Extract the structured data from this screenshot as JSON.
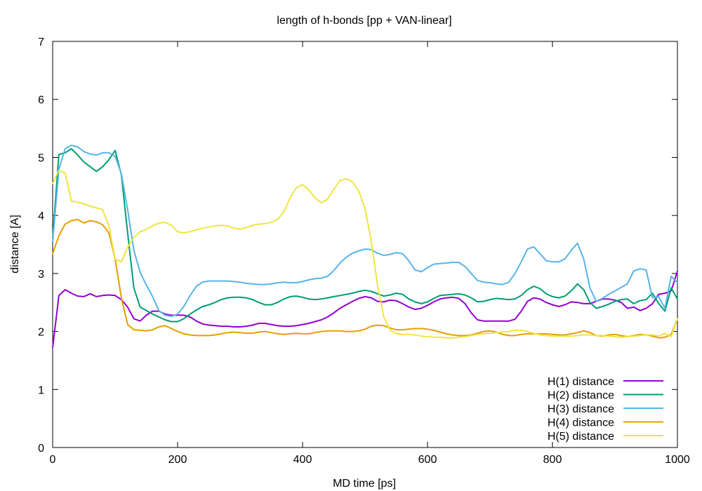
{
  "chart_data": {
    "type": "line",
    "title": "length of h-bonds [pp + VAN-linear]",
    "xlabel": "MD time [ps]",
    "ylabel": "distance [A]",
    "xlim": [
      0,
      1000
    ],
    "ylim": [
      0,
      7
    ],
    "xticks": [
      "0",
      "200",
      "400",
      "600",
      "800",
      "1000"
    ],
    "yticks": [
      "0",
      "1",
      "2",
      "3",
      "4",
      "5",
      "6",
      "7"
    ],
    "grid": false,
    "legend_position": "bottom-right",
    "x": [
      0,
      10,
      20,
      30,
      40,
      50,
      60,
      70,
      80,
      90,
      100,
      110,
      120,
      130,
      140,
      150,
      160,
      170,
      180,
      190,
      200,
      210,
      220,
      230,
      240,
      250,
      260,
      270,
      280,
      290,
      300,
      310,
      320,
      330,
      340,
      350,
      360,
      370,
      380,
      390,
      400,
      410,
      420,
      430,
      440,
      450,
      460,
      470,
      480,
      490,
      500,
      510,
      520,
      530,
      540,
      550,
      560,
      570,
      580,
      590,
      600,
      610,
      620,
      630,
      640,
      650,
      660,
      670,
      680,
      690,
      700,
      710,
      720,
      730,
      740,
      750,
      760,
      770,
      780,
      790,
      800,
      810,
      820,
      830,
      840,
      850,
      860,
      870,
      880,
      890,
      900,
      910,
      920,
      930,
      940,
      950,
      960,
      970,
      980,
      990,
      1000
    ],
    "series": [
      {
        "name": "H(1) distance",
        "color": "#9400d3",
        "values": [
          1.72,
          2.62,
          2.72,
          2.66,
          2.61,
          2.6,
          2.65,
          2.6,
          2.62,
          2.63,
          2.62,
          2.55,
          2.42,
          2.22,
          2.18,
          2.28,
          2.35,
          2.35,
          2.3,
          2.28,
          2.28,
          2.28,
          2.25,
          2.18,
          2.13,
          2.11,
          2.1,
          2.09,
          2.09,
          2.08,
          2.08,
          2.09,
          2.11,
          2.14,
          2.14,
          2.12,
          2.1,
          2.09,
          2.09,
          2.1,
          2.12,
          2.14,
          2.17,
          2.2,
          2.25,
          2.32,
          2.4,
          2.46,
          2.52,
          2.57,
          2.6,
          2.58,
          2.52,
          2.51,
          2.54,
          2.53,
          2.48,
          2.42,
          2.38,
          2.4,
          2.45,
          2.51,
          2.56,
          2.58,
          2.59,
          2.57,
          2.48,
          2.32,
          2.2,
          2.18,
          2.18,
          2.18,
          2.18,
          2.18,
          2.21,
          2.35,
          2.52,
          2.58,
          2.56,
          2.5,
          2.46,
          2.43,
          2.46,
          2.51,
          2.5,
          2.48,
          2.48,
          2.52,
          2.56,
          2.56,
          2.54,
          2.5,
          2.4,
          2.42,
          2.36,
          2.4,
          2.48,
          2.64,
          2.66,
          2.7,
          3.04
        ]
      },
      {
        "name": "H(2) distance",
        "color": "#009e73",
        "values": [
          3.6,
          5.05,
          5.08,
          5.15,
          5.04,
          4.92,
          4.84,
          4.76,
          4.84,
          4.96,
          5.12,
          4.7,
          3.7,
          2.75,
          2.42,
          2.36,
          2.3,
          2.25,
          2.2,
          2.17,
          2.17,
          2.22,
          2.3,
          2.37,
          2.43,
          2.46,
          2.5,
          2.55,
          2.58,
          2.59,
          2.59,
          2.58,
          2.55,
          2.5,
          2.46,
          2.46,
          2.5,
          2.56,
          2.6,
          2.61,
          2.59,
          2.56,
          2.55,
          2.56,
          2.58,
          2.6,
          2.62,
          2.64,
          2.66,
          2.69,
          2.71,
          2.69,
          2.65,
          2.61,
          2.63,
          2.66,
          2.64,
          2.56,
          2.51,
          2.48,
          2.51,
          2.57,
          2.62,
          2.63,
          2.64,
          2.65,
          2.63,
          2.58,
          2.51,
          2.52,
          2.55,
          2.57,
          2.56,
          2.55,
          2.56,
          2.62,
          2.72,
          2.78,
          2.74,
          2.65,
          2.6,
          2.58,
          2.61,
          2.7,
          2.82,
          2.72,
          2.5,
          2.4,
          2.43,
          2.47,
          2.52,
          2.55,
          2.56,
          2.48,
          2.53,
          2.55,
          2.66,
          2.48,
          2.35,
          2.75,
          2.56
        ]
      },
      {
        "name": "H(3) distance",
        "color": "#56b4e9",
        "values": [
          3.55,
          4.8,
          5.15,
          5.21,
          5.18,
          5.1,
          5.06,
          5.04,
          5.08,
          5.08,
          5.02,
          4.72,
          4.1,
          3.4,
          3.02,
          2.8,
          2.6,
          2.36,
          2.28,
          2.26,
          2.3,
          2.43,
          2.62,
          2.78,
          2.85,
          2.87,
          2.87,
          2.87,
          2.87,
          2.86,
          2.85,
          2.83,
          2.82,
          2.81,
          2.81,
          2.82,
          2.84,
          2.85,
          2.84,
          2.84,
          2.86,
          2.89,
          2.91,
          2.92,
          2.95,
          3.05,
          3.18,
          3.28,
          3.35,
          3.39,
          3.42,
          3.41,
          3.35,
          3.31,
          3.33,
          3.36,
          3.34,
          3.22,
          3.06,
          3.03,
          3.1,
          3.16,
          3.17,
          3.18,
          3.19,
          3.19,
          3.12,
          3.0,
          2.88,
          2.85,
          2.84,
          2.82,
          2.81,
          2.85,
          3.0,
          3.2,
          3.42,
          3.46,
          3.34,
          3.22,
          3.2,
          3.2,
          3.25,
          3.4,
          3.52,
          3.25,
          2.75,
          2.52,
          2.57,
          2.64,
          2.7,
          2.76,
          2.82,
          3.04,
          3.08,
          3.06,
          2.58,
          2.6,
          2.4,
          2.95,
          2.84
        ]
      },
      {
        "name": "H(4) distance",
        "color": "#e69f00",
        "values": [
          3.34,
          3.65,
          3.85,
          3.91,
          3.93,
          3.87,
          3.91,
          3.89,
          3.84,
          3.7,
          3.25,
          2.58,
          2.12,
          2.03,
          2.02,
          2.01,
          2.03,
          2.08,
          2.1,
          2.05,
          2.0,
          1.96,
          1.94,
          1.93,
          1.93,
          1.93,
          1.94,
          1.96,
          1.98,
          1.99,
          1.98,
          1.97,
          1.97,
          1.99,
          2.0,
          1.98,
          1.96,
          1.95,
          1.96,
          1.97,
          1.96,
          1.96,
          1.98,
          2.0,
          2.01,
          2.01,
          2.01,
          2.0,
          2.0,
          2.01,
          2.04,
          2.09,
          2.11,
          2.1,
          2.06,
          2.03,
          2.03,
          2.04,
          2.05,
          2.05,
          2.04,
          2.02,
          1.99,
          1.96,
          1.94,
          1.93,
          1.93,
          1.94,
          1.97,
          2.0,
          2.01,
          1.99,
          1.95,
          1.93,
          1.93,
          1.95,
          1.96,
          1.96,
          1.96,
          1.96,
          1.95,
          1.94,
          1.94,
          1.96,
          1.98,
          2.01,
          1.98,
          1.93,
          1.92,
          1.94,
          1.95,
          1.93,
          1.91,
          1.93,
          1.95,
          1.94,
          1.92,
          1.89,
          1.9,
          1.95,
          2.22
        ]
      },
      {
        "name": "H(5) distance",
        "color": "#f0e442",
        "values": [
          4.55,
          4.78,
          4.73,
          4.25,
          4.23,
          4.2,
          4.16,
          4.13,
          4.1,
          3.82,
          3.25,
          3.2,
          3.45,
          3.62,
          3.72,
          3.76,
          3.82,
          3.87,
          3.88,
          3.83,
          3.72,
          3.7,
          3.72,
          3.75,
          3.78,
          3.8,
          3.82,
          3.83,
          3.82,
          3.78,
          3.76,
          3.79,
          3.83,
          3.85,
          3.86,
          3.88,
          3.93,
          4.06,
          4.3,
          4.48,
          4.53,
          4.44,
          4.3,
          4.22,
          4.28,
          4.45,
          4.6,
          4.63,
          4.58,
          4.42,
          4.12,
          3.55,
          2.8,
          2.25,
          2.02,
          1.96,
          1.95,
          1.95,
          1.94,
          1.92,
          1.91,
          1.9,
          1.9,
          1.89,
          1.89,
          1.9,
          1.91,
          1.93,
          1.95,
          1.96,
          1.97,
          1.98,
          1.99,
          2.0,
          2.02,
          2.02,
          2.0,
          1.97,
          1.94,
          1.93,
          1.92,
          1.92,
          1.92,
          1.92,
          1.93,
          1.94,
          1.94,
          1.93,
          1.93,
          1.92,
          1.91,
          1.9,
          1.91,
          1.92,
          1.93,
          1.94,
          1.94,
          1.92,
          1.97,
          1.91,
          2.22
        ]
      }
    ]
  }
}
